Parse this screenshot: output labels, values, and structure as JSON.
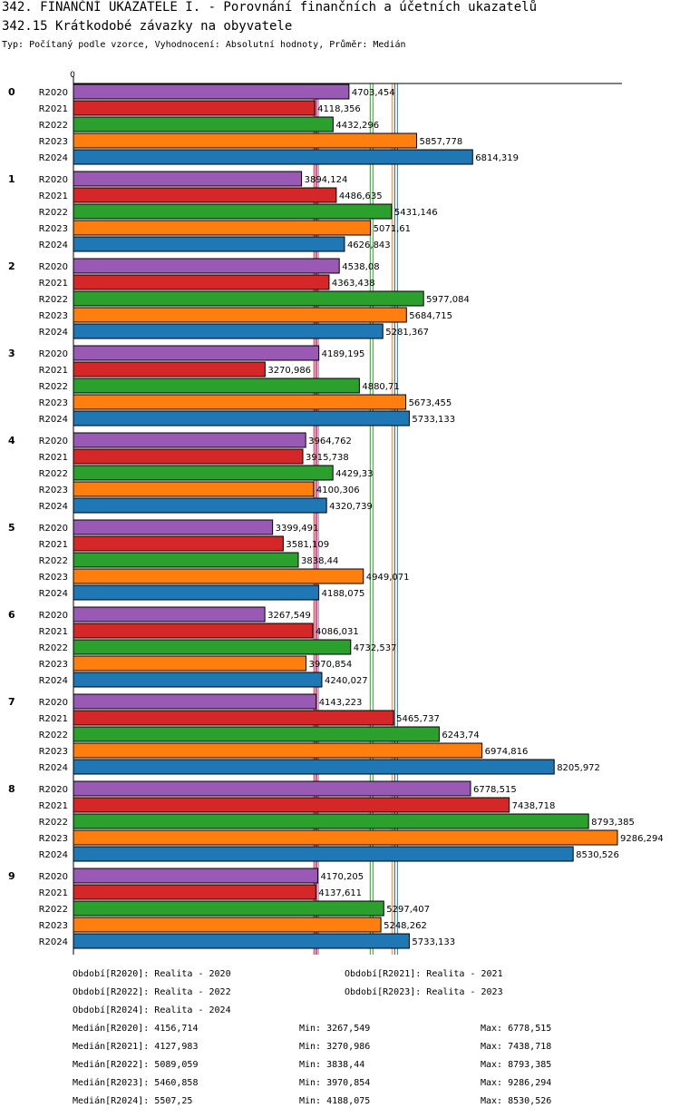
{
  "header": {
    "title1": "342. FINANČNÍ UKAZATELE I. - Porovnání finančních a účetních ukazatelů",
    "title2": "342.15 Krátkodobé závazky na obyvatele",
    "subtitle": "Typ: Počítaný podle vzorce, Vyhodnocení: Absolutní hodnoty, Průměr: Medián"
  },
  "colors": {
    "R2020": "#9b59b6",
    "R2021": "#d62728",
    "R2022": "#2ca02c",
    "R2023": "#ff7f0e",
    "R2024": "#1f77b4"
  },
  "chart_data": {
    "type": "bar",
    "orientation": "horizontal",
    "axis_zero_label": "0",
    "xlim": [
      0,
      9286.294
    ],
    "groups": [
      "0",
      "1",
      "2",
      "3",
      "4",
      "5",
      "6",
      "7",
      "8",
      "9"
    ],
    "series": [
      {
        "name": "R2020",
        "values": [
          4703.454,
          3894.124,
          4538.08,
          4189.195,
          3964.762,
          3399.491,
          3267.549,
          4143.223,
          6778.515,
          4170.205
        ],
        "labels": [
          "4703,454",
          "3894,124",
          "4538,08",
          "4189,195",
          "3964,762",
          "3399,491",
          "3267,549",
          "4143,223",
          "6778,515",
          "4170,205"
        ]
      },
      {
        "name": "R2021",
        "values": [
          4118.356,
          4486.635,
          4363.438,
          3270.986,
          3915.738,
          3581.109,
          4086.031,
          5465.737,
          7438.718,
          4137.611
        ],
        "labels": [
          "4118,356",
          "4486,635",
          "4363,438",
          "3270,986",
          "3915,738",
          "3581,109",
          "4086,031",
          "5465,737",
          "7438,718",
          "4137,611"
        ]
      },
      {
        "name": "R2022",
        "values": [
          4432.296,
          5431.146,
          5977.084,
          4880.71,
          4429.33,
          3838.44,
          4732.537,
          6243.74,
          8793.385,
          5297.407
        ],
        "labels": [
          "4432,296",
          "5431,146",
          "5977,084",
          "4880,71",
          "4429,33",
          "3838,44",
          "4732,537",
          "6243,74",
          "8793,385",
          "5297,407"
        ]
      },
      {
        "name": "R2023",
        "values": [
          5857.778,
          5071.61,
          5684.715,
          5673.455,
          4100.306,
          4949.071,
          3970.854,
          6974.816,
          9286.294,
          5248.262
        ],
        "labels": [
          "5857,778",
          "5071,61",
          "5684,715",
          "5673,455",
          "4100,306",
          "4949,071",
          "3970,854",
          "6974,816",
          "9286,294",
          "5248,262"
        ]
      },
      {
        "name": "R2024",
        "values": [
          6814.319,
          4626.843,
          5281.367,
          5733.133,
          4320.739,
          4188.075,
          4240.027,
          8205.972,
          8530.526,
          5733.133
        ],
        "labels": [
          "6814,319",
          "4626,843",
          "5281,367",
          "5733,133",
          "4320,739",
          "4188,075",
          "4240,027",
          "8205,972",
          "8530,526",
          "5733,133"
        ]
      }
    ],
    "medians": {
      "R2020": 4156.714,
      "R2021": 4127.983,
      "R2022": 5089.059,
      "R2023": 5460.858,
      "R2024": 5507.25
    }
  },
  "legend": {
    "periods": [
      "Období[R2020]: Realita - 2020",
      "Období[R2021]: Realita - 2021",
      "Období[R2022]: Realita - 2022",
      "Období[R2023]: Realita - 2023",
      "Období[R2024]: Realita - 2024"
    ],
    "stats": [
      {
        "median": "Medián[R2020]: 4156,714",
        "min": "Min: 3267,549",
        "max": "Max: 6778,515"
      },
      {
        "median": "Medián[R2021]: 4127,983",
        "min": "Min: 3270,986",
        "max": "Max: 7438,718"
      },
      {
        "median": "Medián[R2022]: 5089,059",
        "min": "Min: 3838,44",
        "max": "Max: 8793,385"
      },
      {
        "median": "Medián[R2023]: 5460,858",
        "min": "Min: 3970,854",
        "max": "Max: 9286,294"
      },
      {
        "median": "Medián[R2024]: 5507,25",
        "min": "Min: 4188,075",
        "max": "Max: 8530,526"
      }
    ]
  }
}
